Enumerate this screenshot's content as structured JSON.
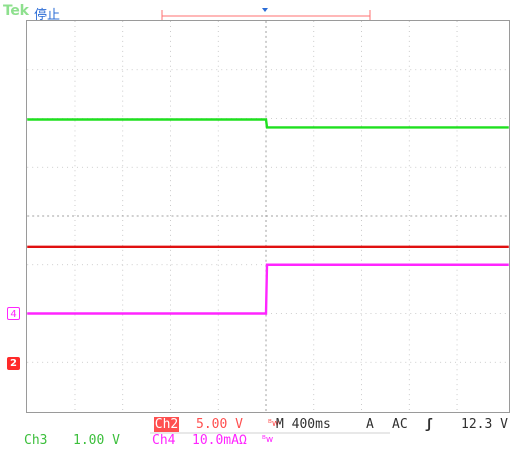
{
  "header": {
    "brand": "Tek",
    "run_state": "停止"
  },
  "markers": {
    "ch4": "4",
    "ch2": "2"
  },
  "status_bar": {
    "ch2_name": "Ch2",
    "ch2_scale": "5.00 V",
    "bw_glyph": "ᴮw",
    "timebase": "M 400ms",
    "trigger_source": "A",
    "trigger_coupling": "AC",
    "trigger_slope": "ʃ",
    "trigger_level": "12.3 V",
    "ch3_name": "Ch3",
    "ch3_scale": "1.00 V",
    "ch4_name": "Ch4",
    "ch4_scale": "10.0mAΩ",
    "ch4_glyph": "ᴮw"
  },
  "colors": {
    "ch1_green": "#1fe01f",
    "ch2_red": "#e01010",
    "ch4_magenta": "#ff25ff",
    "grid": "#9a9a9a",
    "trigger_marker": "#2b6cd6"
  }
}
